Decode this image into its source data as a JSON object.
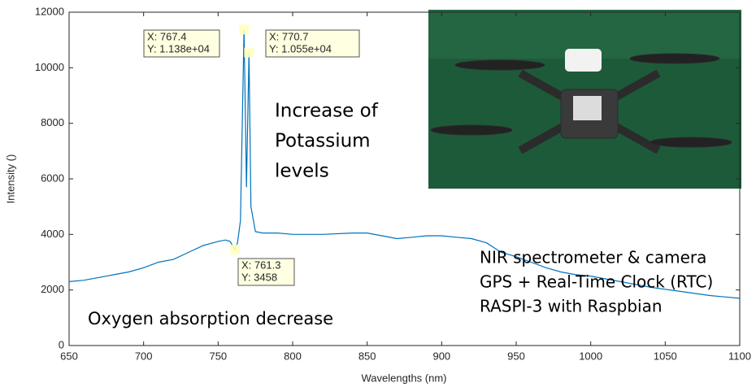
{
  "chart_data": {
    "type": "line",
    "xlabel": "Wavelengths (nm)",
    "ylabel": "Intensity ()",
    "color": "#0072bd",
    "grid": false,
    "xlim": [
      650,
      1100
    ],
    "ylim": [
      0,
      12000
    ],
    "xticks": [
      650,
      700,
      750,
      800,
      850,
      900,
      950,
      1000,
      1050,
      1100
    ],
    "yticks": [
      0,
      2000,
      4000,
      6000,
      8000,
      10000,
      12000
    ],
    "x": [
      650,
      660,
      670,
      680,
      690,
      700,
      710,
      720,
      730,
      740,
      750,
      755,
      758,
      761.3,
      763,
      765,
      767.4,
      769,
      770.7,
      772,
      775,
      780,
      790,
      800,
      820,
      840,
      850,
      860,
      870,
      880,
      890,
      900,
      910,
      920,
      930,
      940,
      950,
      960,
      970,
      980,
      990,
      1000,
      1020,
      1040,
      1060,
      1080,
      1100
    ],
    "values": [
      2300,
      2350,
      2450,
      2550,
      2650,
      2800,
      3000,
      3100,
      3350,
      3600,
      3750,
      3800,
      3750,
      3458,
      3700,
      4500,
      11380,
      5700,
      10550,
      5000,
      4100,
      4050,
      4050,
      4000,
      4000,
      4050,
      4050,
      3950,
      3850,
      3900,
      3950,
      3950,
      3900,
      3850,
      3700,
      3350,
      3200,
      3000,
      2800,
      2650,
      2550,
      2500,
      2300,
      2100,
      1950,
      1800,
      1700
    ],
    "datatips": [
      {
        "x": 767.4,
        "y": 11380,
        "x_label": "X: 767.4",
        "y_label": "Y: 1.138e+04"
      },
      {
        "x": 770.7,
        "y": 10550,
        "x_label": "X: 770.7",
        "y_label": "Y: 1.055e+04"
      },
      {
        "x": 761.3,
        "y": 3458,
        "x_label": "X: 761.3",
        "y_label": "Y: 3458"
      }
    ],
    "annotations": [
      {
        "lines": [
          "Increase of",
          "Potassium",
          "levels"
        ]
      },
      {
        "lines": [
          "NIR spectrometer & camera",
          "GPS + Real-Time Clock (RTC)",
          "RASPI-3 with Raspbian"
        ]
      },
      {
        "lines": [
          "Oxygen absorption decrease"
        ]
      }
    ]
  }
}
